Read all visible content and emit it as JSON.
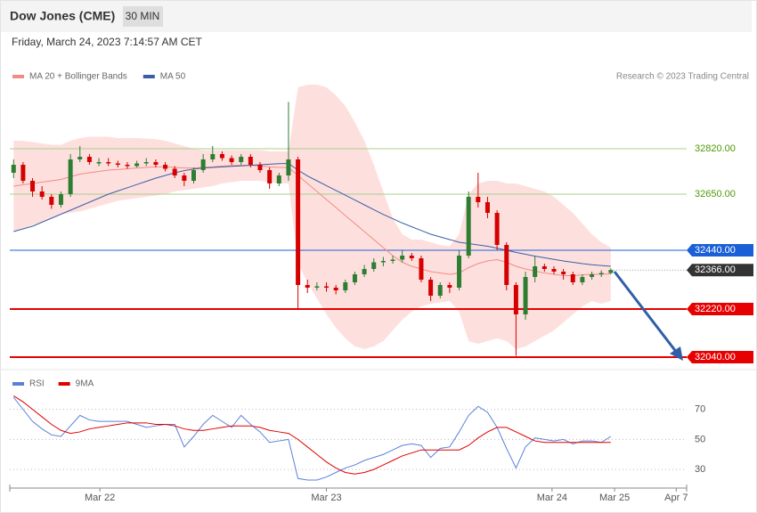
{
  "chart_data": [
    {
      "type": "candlestick",
      "title": "Dow Jones (CME)",
      "interval": "30 MIN",
      "subtitle": "Friday, March 24, 2023 7:14:57 AM CET",
      "source": "Research © 2023 Trading Central",
      "up_color": "#2e7d32",
      "down_color": "#d50000",
      "xlim": [
        -0.4,
        71
      ],
      "ylim": [
        32010,
        33060
      ],
      "open": [
        32730,
        32760,
        32700,
        32660,
        32640,
        32610,
        32650,
        32780,
        32790,
        32765,
        32770,
        32765,
        32760,
        32755,
        32765,
        32770,
        32760,
        32745,
        32720,
        32700,
        32740,
        32780,
        32800,
        32785,
        32770,
        32790,
        32760,
        32740,
        32690,
        32720,
        32780,
        32310,
        32300,
        32305,
        32300,
        32290,
        32320,
        32350,
        32370,
        32395,
        32400,
        32405,
        32420,
        32410,
        32330,
        32270,
        32310,
        32300,
        32420,
        32640,
        32620,
        32580,
        32460,
        32310,
        32200,
        32340,
        32380,
        32370,
        32360,
        32350,
        32320,
        32340,
        32350,
        32355
      ],
      "high": [
        32780,
        32770,
        32710,
        32680,
        32650,
        32660,
        32800,
        32830,
        32800,
        32785,
        32785,
        32775,
        32770,
        32775,
        32785,
        32780,
        32770,
        32755,
        32730,
        32750,
        32800,
        32830,
        32810,
        32795,
        32800,
        32800,
        32770,
        32750,
        32730,
        32995,
        32790,
        32330,
        32320,
        32320,
        32310,
        32330,
        32360,
        32385,
        32410,
        32415,
        32420,
        32440,
        32430,
        32420,
        32340,
        32320,
        32320,
        32440,
        32660,
        32730,
        32640,
        32590,
        32470,
        32320,
        32360,
        32420,
        32390,
        32380,
        32370,
        32360,
        32350,
        32360,
        32365,
        32372
      ],
      "low": [
        32710,
        32690,
        32640,
        32630,
        32595,
        32600,
        32640,
        32770,
        32760,
        32755,
        32755,
        32750,
        32745,
        32750,
        32755,
        32750,
        32735,
        32710,
        32680,
        32690,
        32730,
        32770,
        32775,
        32760,
        32760,
        32750,
        32730,
        32670,
        32680,
        32700,
        32220,
        32280,
        32290,
        32285,
        32275,
        32280,
        32310,
        32340,
        32360,
        32380,
        32390,
        32395,
        32400,
        32320,
        32250,
        32260,
        32280,
        32290,
        32410,
        32600,
        32560,
        32440,
        32290,
        32045,
        32180,
        32320,
        32360,
        32350,
        32330,
        32310,
        32310,
        32330,
        32340,
        32350
      ],
      "close": [
        32760,
        32700,
        32660,
        32640,
        32610,
        32650,
        32780,
        32790,
        32770,
        32770,
        32765,
        32760,
        32755,
        32765,
        32770,
        32760,
        32745,
        32720,
        32700,
        32740,
        32780,
        32800,
        32785,
        32770,
        32790,
        32760,
        32740,
        32690,
        32720,
        32780,
        32310,
        32300,
        32305,
        32300,
        32290,
        32320,
        32350,
        32370,
        32395,
        32400,
        32405,
        32420,
        32410,
        32330,
        32270,
        32310,
        32300,
        32420,
        32640,
        32620,
        32580,
        32460,
        32310,
        32200,
        32340,
        32380,
        32370,
        32360,
        32350,
        32320,
        32340,
        32350,
        32355,
        32366
      ],
      "series": [
        {
          "name": "MA 20 + Bollinger Bands",
          "color": "#f28b82",
          "band_color": "#fde0de",
          "values": [
            32680,
            32685,
            32690,
            32695,
            32700,
            32705,
            32715,
            32725,
            32730,
            32735,
            32740,
            32742,
            32745,
            32748,
            32750,
            32752,
            32752,
            32750,
            32748,
            32748,
            32750,
            32752,
            32755,
            32757,
            32758,
            32758,
            32756,
            32752,
            32750,
            32750,
            32720,
            32690,
            32660,
            32630,
            32600,
            32570,
            32540,
            32510,
            32480,
            32450,
            32420,
            32395,
            32380,
            32370,
            32360,
            32355,
            32350,
            32355,
            32375,
            32390,
            32400,
            32405,
            32395,
            32380,
            32370,
            32362,
            32355,
            32350,
            32345,
            32345,
            32348,
            32350,
            32350,
            32352
          ],
          "upper": [
            32850,
            32850,
            32845,
            32840,
            32835,
            32835,
            32850,
            32860,
            32865,
            32865,
            32865,
            32860,
            32860,
            32860,
            32858,
            32856,
            32850,
            32840,
            32830,
            32820,
            32815,
            32815,
            32815,
            32815,
            32815,
            32815,
            32815,
            32810,
            32810,
            32810,
            33050,
            33060,
            33060,
            33050,
            33020,
            32980,
            32920,
            32850,
            32760,
            32660,
            32560,
            32500,
            32480,
            32480,
            32470,
            32460,
            32455,
            32500,
            32650,
            32690,
            32700,
            32700,
            32690,
            32690,
            32680,
            32670,
            32660,
            32640,
            32610,
            32580,
            32540,
            32500,
            32470,
            32450
          ],
          "lower": [
            32510,
            32520,
            32535,
            32545,
            32560,
            32575,
            32580,
            32585,
            32595,
            32605,
            32615,
            32625,
            32630,
            32635,
            32640,
            32645,
            32650,
            32660,
            32665,
            32670,
            32675,
            32680,
            32690,
            32695,
            32700,
            32700,
            32700,
            32695,
            32690,
            32690,
            32390,
            32320,
            32260,
            32200,
            32150,
            32110,
            32080,
            32070,
            32080,
            32100,
            32140,
            32180,
            32210,
            32230,
            32240,
            32245,
            32250,
            32210,
            32100,
            32090,
            32100,
            32110,
            32100,
            32070,
            32080,
            32100,
            32120,
            32140,
            32170,
            32200,
            32230,
            32250,
            32240,
            32250
          ]
        },
        {
          "name": "MA 50",
          "color": "#3b5ea6",
          "values": [
            32510,
            32520,
            32530,
            32545,
            32560,
            32575,
            32590,
            32605,
            32620,
            32635,
            32650,
            32662,
            32674,
            32686,
            32698,
            32710,
            32720,
            32730,
            32738,
            32744,
            32748,
            32750,
            32752,
            32754,
            32756,
            32758,
            32760,
            32762,
            32764,
            32765,
            32740,
            32718,
            32700,
            32682,
            32664,
            32646,
            32628,
            32610,
            32592,
            32574,
            32558,
            32542,
            32528,
            32514,
            32500,
            32490,
            32480,
            32470,
            32465,
            32460,
            32455,
            32448,
            32440,
            32432,
            32425,
            32418,
            32412,
            32406,
            32400,
            32395,
            32390,
            32386,
            32383,
            32380
          ]
        }
      ],
      "levels": [
        {
          "value": 32820,
          "label": "32820.00",
          "color": "#a8d08d",
          "text_color": "#4e9a06",
          "boxed": false
        },
        {
          "value": 32650,
          "label": "32650.00",
          "color": "#a8d08d",
          "text_color": "#4e9a06",
          "boxed": false
        },
        {
          "value": 32440,
          "label": "32440.00",
          "color": "#1a5fd6",
          "text_color": "#ffffff",
          "boxed": true
        },
        {
          "value": 32220,
          "label": "32220.00",
          "color": "#e60000",
          "text_color": "#ffffff",
          "boxed": true
        },
        {
          "value": 32040,
          "label": "32040.00",
          "color": "#e60000",
          "text_color": "#ffffff",
          "boxed": true
        }
      ],
      "last": {
        "value": 32366,
        "label": "32366.00",
        "color": "#333333"
      }
    },
    {
      "type": "line",
      "xlim": [
        -0.4,
        71
      ],
      "ylim": [
        20,
        84
      ],
      "yticks": [
        30,
        50,
        70
      ],
      "grid": true,
      "xticks": [
        {
          "value": 9.1,
          "label": "Mar 22"
        },
        {
          "value": 33,
          "label": "Mar 23"
        },
        {
          "value": 56.8,
          "label": "Mar 24"
        },
        {
          "value": 63.4,
          "label": "Mar 25"
        },
        {
          "value": 69.9,
          "label": "Apr 7"
        }
      ],
      "series": [
        {
          "name": "RSI",
          "color": "#5b7fdb",
          "values": [
            78,
            70,
            62,
            57,
            53,
            52,
            59,
            66,
            63,
            62,
            62,
            62,
            62,
            60,
            58,
            59,
            60,
            60,
            45,
            52,
            60,
            66,
            62,
            58,
            66,
            60,
            55,
            48,
            49,
            50,
            24,
            23,
            23,
            25,
            28,
            31,
            33,
            36,
            38,
            40,
            43,
            46,
            47,
            46,
            38,
            44,
            45,
            55,
            66,
            72,
            68,
            58,
            44,
            31,
            45,
            51,
            50,
            49,
            50,
            47,
            49,
            49,
            48,
            52
          ]
        },
        {
          "name": "9MA",
          "color": "#e00000",
          "values": [
            79,
            75,
            70,
            65,
            60,
            56,
            54,
            55,
            57,
            58,
            59,
            60,
            61,
            61,
            61,
            60,
            60,
            59,
            57,
            56,
            56,
            57,
            58,
            59,
            59,
            59,
            58,
            56,
            55,
            54,
            50,
            45,
            40,
            35,
            31,
            28,
            27,
            28,
            30,
            33,
            36,
            39,
            41,
            43,
            43,
            43,
            43,
            43,
            46,
            51,
            55,
            58,
            58,
            55,
            52,
            49,
            48,
            48,
            48,
            48,
            48,
            48,
            48,
            48
          ]
        }
      ]
    }
  ]
}
